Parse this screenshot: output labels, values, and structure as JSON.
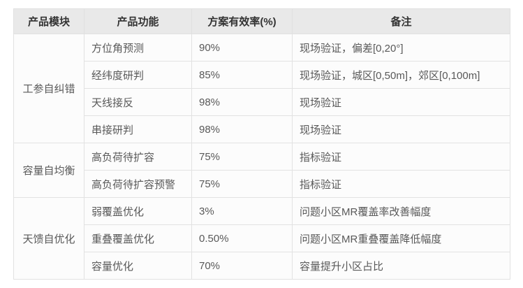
{
  "table": {
    "headers": {
      "module": "产品模块",
      "function": "产品功能",
      "efficiency": "方案有效率(%)",
      "remark": "备注"
    },
    "groups": [
      {
        "module": "工参自纠错",
        "rows": [
          {
            "function": "方位角预测",
            "efficiency": "90%",
            "remark": "现场验证，偏差[0,20°]"
          },
          {
            "function": "经纬度研判",
            "efficiency": "85%",
            "remark": "现场验证，城区[0,50m]，郊区[0,100m]"
          },
          {
            "function": "天线接反",
            "efficiency": "98%",
            "remark": "现场验证"
          },
          {
            "function": "串接研判",
            "efficiency": "98%",
            "remark": "现场验证"
          }
        ]
      },
      {
        "module": "容量自均衡",
        "rows": [
          {
            "function": "高负荷待扩容",
            "efficiency": "75%",
            "remark": "指标验证"
          },
          {
            "function": "高负荷待扩容预警",
            "efficiency": "75%",
            "remark": "指标验证"
          }
        ]
      },
      {
        "module": "天馈自优化",
        "rows": [
          {
            "function": "弱覆盖优化",
            "efficiency": "3%",
            "remark": "问题小区MR覆盖率改善幅度"
          },
          {
            "function": "重叠覆盖优化",
            "efficiency": "0.50%",
            "remark": "问题小区MR重叠覆盖降低幅度"
          },
          {
            "function": "容量优化",
            "efficiency": "70%",
            "remark": "容量提升小区占比"
          }
        ]
      }
    ],
    "colors": {
      "header_bg": "#e9e9e9",
      "row_bg": "#fcfcfc",
      "border": "#e2e2e2",
      "header_text": "#333333",
      "body_text": "#595959"
    }
  }
}
